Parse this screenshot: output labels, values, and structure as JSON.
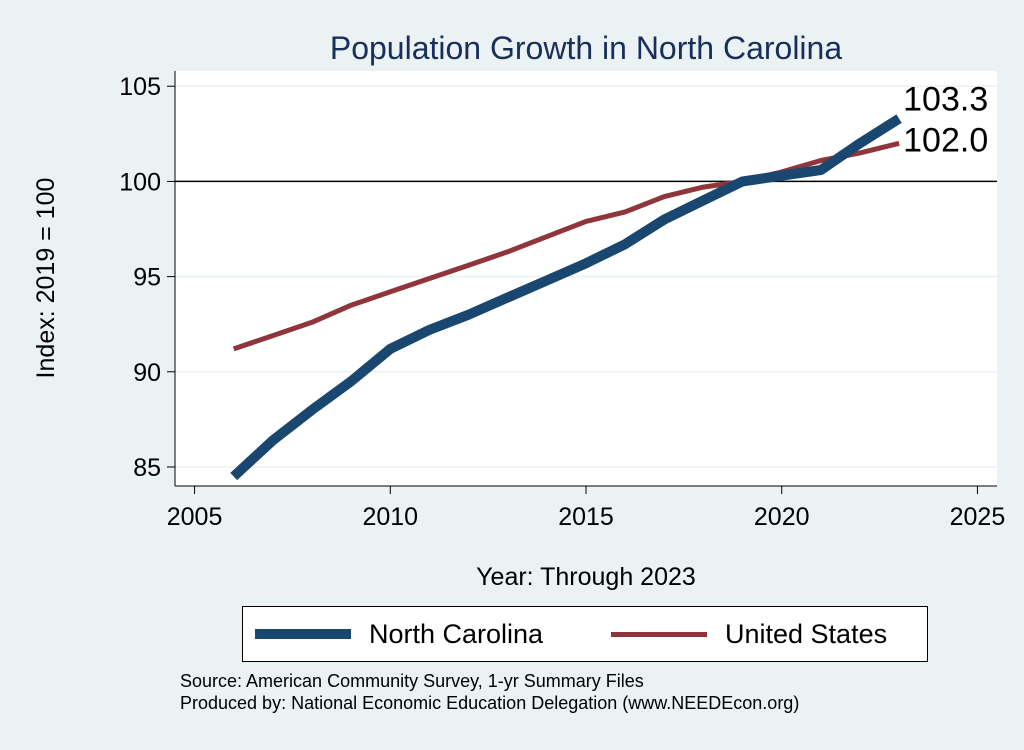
{
  "chart_data": {
    "type": "line",
    "title": "Population Growth in North Carolina",
    "xlabel": "Year: Through 2023",
    "ylabel": "Index: 2019 = 100",
    "xlim": [
      2004.5,
      2025.5
    ],
    "ylim": [
      84,
      105.8
    ],
    "x_ticks": [
      2005,
      2010,
      2015,
      2020,
      2025
    ],
    "y_ticks": [
      85,
      90,
      95,
      100,
      105
    ],
    "reference_line": 100,
    "grid": true,
    "legend_position": "bottom",
    "x": [
      2006,
      2007,
      2008,
      2009,
      2010,
      2011,
      2012,
      2013,
      2014,
      2015,
      2016,
      2017,
      2018,
      2019,
      2020,
      2021,
      2022,
      2023
    ],
    "series": [
      {
        "name": "North Carolina",
        "color": "#1a476f",
        "values": [
          84.5,
          86.4,
          88.0,
          89.5,
          91.2,
          92.2,
          93.0,
          93.9,
          94.8,
          95.7,
          96.7,
          98.0,
          99.0,
          100.0,
          100.3,
          100.6,
          102.0,
          103.3
        ],
        "end_label": "103.3"
      },
      {
        "name": "United States",
        "color": "#90353b",
        "values": [
          91.2,
          91.9,
          92.6,
          93.5,
          94.2,
          94.9,
          95.6,
          96.3,
          97.1,
          97.9,
          98.4,
          99.2,
          99.7,
          100.0,
          100.5,
          101.1,
          101.5,
          102.0
        ],
        "end_label": "102.0"
      }
    ]
  },
  "notes": {
    "source": "Source: American Community Survey, 1-yr Summary Files",
    "produced_by": "Produced by: National Economic Education Delegation (www.NEEDEcon.org)"
  }
}
